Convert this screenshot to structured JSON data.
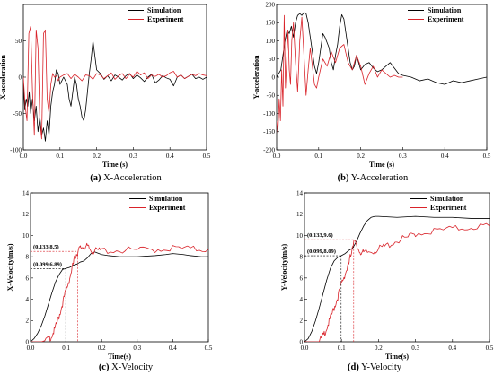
{
  "chart_data": [
    {
      "type": "line",
      "caption_letter": "(a)",
      "caption_text": " X-Acceleration",
      "xlabel": "Time (s)",
      "ylabel": "X-acceleration",
      "xlim": [
        0,
        0.5
      ],
      "ylim": [
        -100,
        100
      ],
      "xticks": [
        0,
        0.1,
        0.2,
        0.3,
        0.4,
        0.5
      ],
      "xtick_labels": [
        "0.0",
        "0.1",
        "0.2",
        "0.3",
        "0.4",
        "0.5"
      ],
      "yticks": [
        -100,
        -50,
        0,
        50
      ],
      "ytick_labels": [
        "-100",
        "-50",
        "0",
        "50"
      ],
      "legend_placement": "top-right",
      "series": [
        {
          "name": "Simulation",
          "color": "#000000",
          "kind": "solid",
          "x": [
            0,
            0.004,
            0.008,
            0.012,
            0.016,
            0.02,
            0.025,
            0.03,
            0.035,
            0.04,
            0.045,
            0.05,
            0.055,
            0.06,
            0.065,
            0.07,
            0.075,
            0.08,
            0.085,
            0.09,
            0.095,
            0.1,
            0.105,
            0.11,
            0.115,
            0.12,
            0.125,
            0.13,
            0.135,
            0.14,
            0.145,
            0.15,
            0.155,
            0.16,
            0.165,
            0.17,
            0.175,
            0.18,
            0.185,
            0.19,
            0.195,
            0.2,
            0.21,
            0.22,
            0.23,
            0.24,
            0.25,
            0.26,
            0.27,
            0.28,
            0.29,
            0.3,
            0.31,
            0.32,
            0.33,
            0.34,
            0.35,
            0.36,
            0.37,
            0.38,
            0.39,
            0.4,
            0.41,
            0.42,
            0.43,
            0.44,
            0.45,
            0.46,
            0.47,
            0.48,
            0.49,
            0.5
          ],
          "y": [
            -10,
            -45,
            -30,
            -40,
            -20,
            -50,
            -30,
            -60,
            -40,
            -75,
            -55,
            -80,
            -70,
            -88,
            -60,
            -80,
            -40,
            -20,
            -10,
            10,
            5,
            -10,
            -5,
            0,
            -5,
            -10,
            -30,
            -40,
            -20,
            0,
            -10,
            -30,
            -40,
            -55,
            -60,
            -45,
            -20,
            5,
            25,
            50,
            30,
            10,
            5,
            -3,
            2,
            -5,
            3,
            0,
            -4,
            2,
            5,
            -2,
            3,
            -1,
            -6,
            0,
            4,
            -8,
            -4,
            2,
            -1,
            -3,
            -12,
            0,
            3,
            -2,
            1,
            4,
            -2,
            0,
            -3,
            0
          ]
        },
        {
          "name": "Experiment",
          "color": "#d9232a",
          "kind": "solid",
          "x": [
            0,
            0.005,
            0.01,
            0.015,
            0.02,
            0.025,
            0.03,
            0.035,
            0.04,
            0.045,
            0.05,
            0.055,
            0.06,
            0.065,
            0.07,
            0.075,
            0.08,
            0.085,
            0.09,
            0.095,
            0.1,
            0.11,
            0.12,
            0.13,
            0.14,
            0.15,
            0.16,
            0.17,
            0.18,
            0.19,
            0.2,
            0.21,
            0.22,
            0.23,
            0.24,
            0.25,
            0.26,
            0.27,
            0.28,
            0.29,
            0.3,
            0.31,
            0.32,
            0.33,
            0.34,
            0.35,
            0.36,
            0.37,
            0.38,
            0.39,
            0.4,
            0.41,
            0.42,
            0.43,
            0.44,
            0.45,
            0.46,
            0.47,
            0.48,
            0.49,
            0.5
          ],
          "y": [
            0,
            -40,
            -60,
            60,
            70,
            -20,
            -80,
            65,
            40,
            -60,
            -85,
            60,
            65,
            -30,
            -50,
            -10,
            5,
            0,
            2,
            -5,
            0,
            3,
            5,
            -2,
            4,
            0,
            -5,
            3,
            2,
            -3,
            5,
            3,
            -2,
            2,
            6,
            -3,
            2,
            5,
            -2,
            4,
            0,
            8,
            3,
            6,
            -2,
            3,
            1,
            4,
            0,
            2,
            6,
            8,
            0,
            3,
            -2,
            1,
            4,
            2,
            5,
            3,
            2
          ]
        }
      ]
    },
    {
      "type": "line",
      "caption_letter": "(b)",
      "caption_text": " Y-Acceleration",
      "xlabel": "Time (s)",
      "ylabel": "Y-acceleration",
      "xlim": [
        0,
        0.5
      ],
      "ylim": [
        -200,
        200
      ],
      "xticks": [
        0,
        0.1,
        0.2,
        0.3,
        0.4,
        0.5
      ],
      "xtick_labels": [
        "0.0",
        "0.1",
        "0.2",
        "0.3",
        "0.4",
        "0.5"
      ],
      "yticks": [
        -200,
        -150,
        -100,
        -50,
        0,
        50,
        100,
        150,
        200
      ],
      "ytick_labels": [
        "-200",
        "-150",
        "-100",
        "-50",
        "0",
        "50",
        "100",
        "150",
        "200"
      ],
      "legend_placement": "top-right",
      "series": [
        {
          "name": "Simulation",
          "color": "#000000",
          "kind": "solid",
          "x": [
            0,
            0.005,
            0.01,
            0.015,
            0.02,
            0.025,
            0.03,
            0.035,
            0.04,
            0.045,
            0.05,
            0.055,
            0.06,
            0.065,
            0.07,
            0.075,
            0.08,
            0.085,
            0.09,
            0.095,
            0.1,
            0.105,
            0.11,
            0.115,
            0.12,
            0.125,
            0.13,
            0.135,
            0.14,
            0.145,
            0.15,
            0.155,
            0.16,
            0.165,
            0.17,
            0.175,
            0.18,
            0.185,
            0.19,
            0.195,
            0.2,
            0.21,
            0.22,
            0.23,
            0.24,
            0.25,
            0.26,
            0.27,
            0.28,
            0.29,
            0.3,
            0.32,
            0.34,
            0.36,
            0.38,
            0.4,
            0.42,
            0.44,
            0.46,
            0.48,
            0.5
          ],
          "y": [
            0,
            10,
            20,
            60,
            100,
            130,
            120,
            140,
            110,
            150,
            170,
            175,
            170,
            178,
            175,
            150,
            110,
            70,
            30,
            10,
            40,
            80,
            120,
            110,
            95,
            80,
            40,
            20,
            60,
            90,
            140,
            172,
            160,
            120,
            80,
            40,
            20,
            30,
            60,
            40,
            20,
            35,
            40,
            25,
            15,
            20,
            30,
            40,
            25,
            10,
            5,
            0,
            -10,
            -5,
            -15,
            -20,
            -10,
            -15,
            -10,
            -5,
            0
          ]
        },
        {
          "name": "Experiment",
          "color": "#d9232a",
          "kind": "solid",
          "x": [
            0,
            0.003,
            0.006,
            0.009,
            0.012,
            0.015,
            0.018,
            0.021,
            0.024,
            0.027,
            0.03,
            0.033,
            0.036,
            0.04,
            0.045,
            0.05,
            0.055,
            0.06,
            0.065,
            0.07,
            0.075,
            0.08,
            0.085,
            0.09,
            0.095,
            0.1,
            0.11,
            0.12,
            0.13,
            0.14,
            0.15,
            0.16,
            0.17,
            0.18,
            0.19,
            0.2,
            0.21,
            0.22,
            0.23,
            0.24,
            0.25,
            0.26,
            0.27,
            0.28,
            0.29,
            0.3
          ],
          "y": [
            -120,
            -155,
            -60,
            -120,
            20,
            -80,
            170,
            -30,
            50,
            130,
            20,
            -20,
            100,
            150,
            40,
            -40,
            100,
            165,
            60,
            -50,
            20,
            80,
            30,
            -20,
            -30,
            0,
            50,
            30,
            70,
            40,
            80,
            90,
            40,
            20,
            60,
            30,
            -20,
            10,
            30,
            0,
            20,
            10,
            0,
            5,
            0,
            0
          ]
        }
      ]
    },
    {
      "type": "line",
      "caption_letter": "(c)",
      "caption_text": " X-Velocity",
      "xlabel": "Time(s)",
      "ylabel": "X-Velocity(m/s)",
      "xlim": [
        0,
        0.5
      ],
      "ylim": [
        0,
        14
      ],
      "xticks": [
        0,
        0.1,
        0.2,
        0.3,
        0.4,
        0.5
      ],
      "xtick_labels": [
        "0.0",
        "0.1",
        "0.2",
        "0.3",
        "0.4",
        "0.5"
      ],
      "yticks": [
        0,
        2,
        4,
        6,
        8,
        10,
        12,
        14
      ],
      "ytick_labels": [
        "0",
        "2",
        "4",
        "6",
        "8",
        "10",
        "12",
        "14"
      ],
      "legend_placement": "top-right",
      "annotations": [
        {
          "text": "(0.133,8.5)",
          "x": 0.133,
          "y": 8.5,
          "color": "#d9232a"
        },
        {
          "text": "(0.099,6.89)",
          "x": 0.099,
          "y": 6.89,
          "color": "#000000"
        }
      ],
      "series": [
        {
          "name": "Simulation",
          "color": "#000000",
          "kind": "solid",
          "x": [
            0,
            0.01,
            0.02,
            0.03,
            0.04,
            0.05,
            0.06,
            0.07,
            0.08,
            0.09,
            0.099,
            0.11,
            0.12,
            0.13,
            0.14,
            0.15,
            0.16,
            0.17,
            0.18,
            0.2,
            0.22,
            0.25,
            0.3,
            0.35,
            0.38,
            0.4,
            0.43,
            0.45,
            0.48,
            0.5
          ],
          "y": [
            0,
            0.3,
            0.8,
            1.5,
            2.4,
            3.5,
            4.6,
            5.6,
            6.3,
            6.8,
            6.89,
            7.0,
            7.2,
            7.3,
            7.5,
            7.6,
            7.9,
            8.3,
            8.45,
            8.2,
            8.1,
            8.0,
            8.0,
            8.1,
            8.2,
            8.3,
            8.2,
            8.1,
            8.0,
            8.0
          ]
        },
        {
          "name": "Experiment",
          "color": "#d9232a",
          "kind": "noisy",
          "x": [
            0,
            0.03,
            0.05,
            0.06,
            0.07,
            0.08,
            0.09,
            0.1,
            0.11,
            0.12,
            0.125,
            0.133,
            0.14,
            0.15,
            0.16,
            0.17,
            0.18,
            0.2,
            0.25,
            0.3,
            0.35,
            0.4,
            0.45,
            0.5
          ],
          "y": [
            0,
            0.0,
            0.2,
            0.6,
            1.3,
            2.4,
            3.6,
            4.8,
            6.0,
            7.3,
            8.0,
            8.5,
            8.8,
            9.0,
            8.9,
            8.6,
            8.5,
            8.6,
            8.6,
            8.6,
            8.7,
            8.8,
            8.7,
            8.7
          ]
        }
      ]
    },
    {
      "type": "line",
      "caption_letter": "(d)",
      "caption_text": " Y-Velocity",
      "xlabel": "Time(s)",
      "ylabel": "Y-Velocity(m/s)",
      "xlim": [
        0,
        0.5
      ],
      "ylim": [
        0,
        14
      ],
      "xticks": [
        0,
        0.1,
        0.2,
        0.3,
        0.4,
        0.5
      ],
      "xtick_labels": [
        "0.0",
        "0.1",
        "0.2",
        "0.3",
        "0.4",
        "0.5"
      ],
      "yticks": [
        0,
        2,
        4,
        6,
        8,
        10,
        12,
        14
      ],
      "ytick_labels": [
        "0",
        "2",
        "4",
        "6",
        "8",
        "10",
        "12",
        "14"
      ],
      "legend_placement": "top-right",
      "annotations": [
        {
          "text": "(0.133,9.6)",
          "x": 0.133,
          "y": 9.6,
          "color": "#d9232a"
        },
        {
          "text": "(0.099,8.09)",
          "x": 0.099,
          "y": 8.09,
          "color": "#000000"
        }
      ],
      "series": [
        {
          "name": "Simulation",
          "color": "#000000",
          "kind": "solid",
          "x": [
            0,
            0.01,
            0.02,
            0.03,
            0.04,
            0.05,
            0.06,
            0.07,
            0.08,
            0.09,
            0.099,
            0.11,
            0.12,
            0.13,
            0.14,
            0.15,
            0.16,
            0.17,
            0.18,
            0.19,
            0.2,
            0.25,
            0.3,
            0.35,
            0.4,
            0.45,
            0.5
          ],
          "y": [
            0,
            0.3,
            1.0,
            2.0,
            3.2,
            4.5,
            5.8,
            6.9,
            7.6,
            7.95,
            8.09,
            8.3,
            8.6,
            8.8,
            9.4,
            10.2,
            10.9,
            11.4,
            11.7,
            11.8,
            11.8,
            11.7,
            11.8,
            11.7,
            11.7,
            11.6,
            11.6
          ]
        },
        {
          "name": "Experiment",
          "color": "#d9232a",
          "kind": "noisy",
          "x": [
            0,
            0.04,
            0.05,
            0.06,
            0.07,
            0.08,
            0.09,
            0.1,
            0.11,
            0.12,
            0.125,
            0.133,
            0.14,
            0.15,
            0.16,
            0.18,
            0.2,
            0.22,
            0.25,
            0.28,
            0.3,
            0.35,
            0.4,
            0.45,
            0.5
          ],
          "y": [
            0,
            0.0,
            0.5,
            1.3,
            2.2,
            3.2,
            4.2,
            5.5,
            6.4,
            7.3,
            8.2,
            9.6,
            9.0,
            8.5,
            8.3,
            8.5,
            8.7,
            9.0,
            9.5,
            9.8,
            10.2,
            10.4,
            10.6,
            10.8,
            10.9
          ]
        }
      ]
    }
  ]
}
